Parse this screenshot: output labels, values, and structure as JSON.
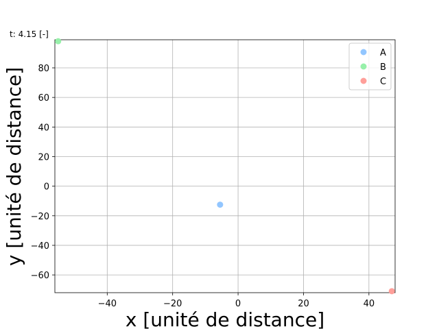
{
  "chart_data": {
    "type": "scatter",
    "annotation": "t: 4.15 [-]",
    "xlabel": "x [unité de distance]",
    "ylabel": "y [unité de distance]",
    "xlim": [
      -56,
      48
    ],
    "ylim": [
      -72,
      99
    ],
    "xticks": [
      -40,
      -20,
      0,
      20,
      40
    ],
    "yticks": [
      -60,
      -40,
      -20,
      0,
      20,
      40,
      60,
      80
    ],
    "tick_labels": {
      "x": [
        "−40",
        "−20",
        "0",
        "20",
        "40"
      ],
      "y": [
        "−60",
        "−40",
        "−20",
        "0",
        "20",
        "40",
        "60",
        "80"
      ]
    },
    "grid": true,
    "legend_position": "top-right",
    "series": [
      {
        "name": "A",
        "color": "#92c6ff",
        "points": [
          {
            "x": -5.5,
            "y": -12.5
          }
        ]
      },
      {
        "name": "B",
        "color": "#97f0aa",
        "points": [
          {
            "x": -55,
            "y": 98
          }
        ]
      },
      {
        "name": "C",
        "color": "#ff9f9a",
        "points": [
          {
            "x": 47,
            "y": -71
          }
        ]
      }
    ]
  }
}
